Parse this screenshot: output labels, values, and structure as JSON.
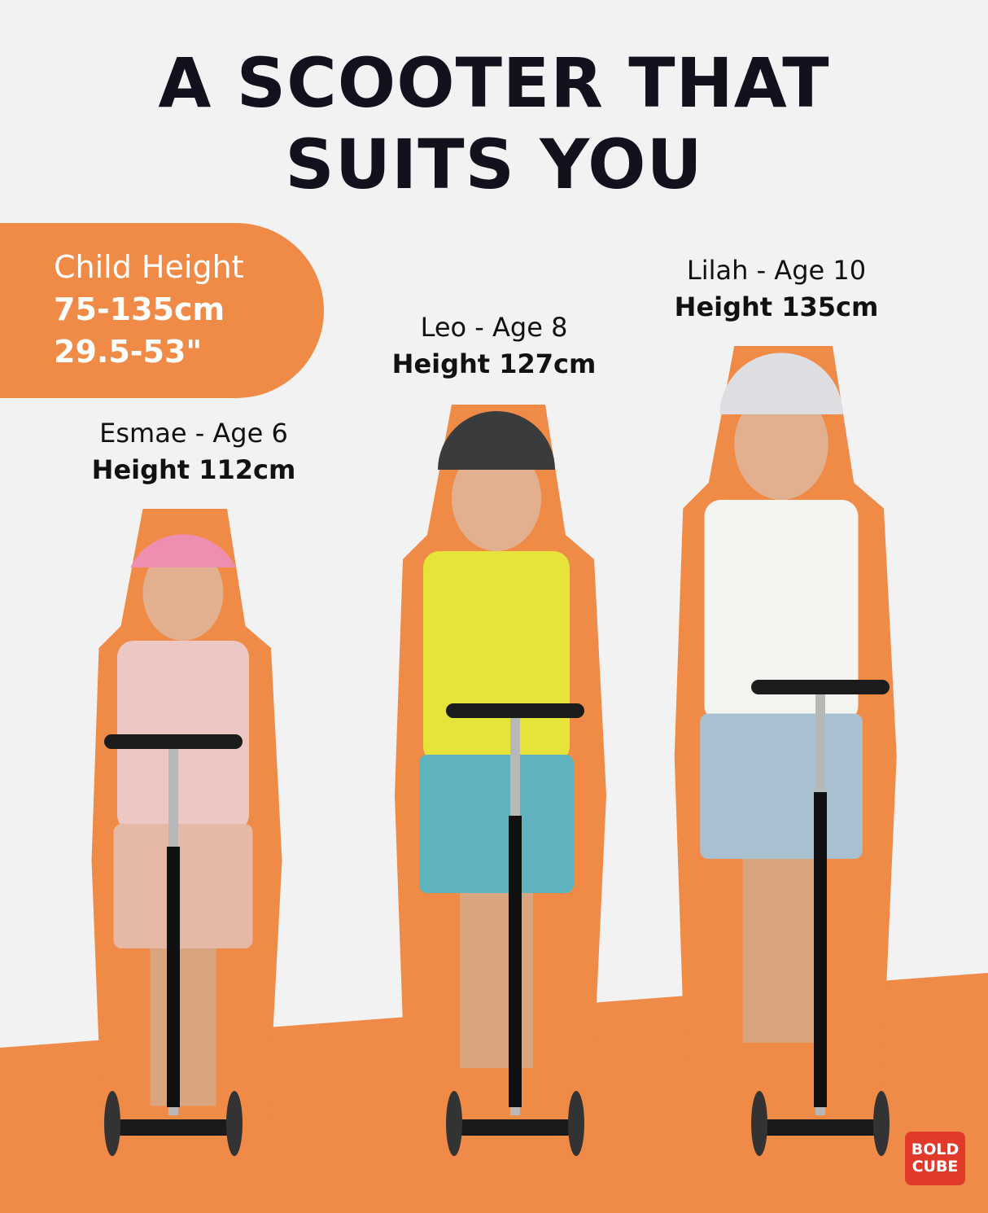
{
  "headline": {
    "line1": "A SCOOTER THAT",
    "line2": "SUITS YOU"
  },
  "height_range": {
    "label": "Child Height",
    "cm": "75-135cm",
    "inches": "29.5-53\""
  },
  "children": [
    {
      "name_age": "Esmae - Age 6",
      "height": "Height 112cm",
      "helmet": "#ee8fb1",
      "top": "#edc7c3",
      "bottom": "#e6b9a6"
    },
    {
      "name_age": "Leo - Age 8",
      "height": "Height 127cm",
      "helmet": "#3a3b3d",
      "top": "#e6e43a",
      "bottom": "#5fb3bf"
    },
    {
      "name_age": "Lilah - Age 10",
      "height": "Height 135cm",
      "helmet": "#dedde2",
      "top": "#f3f3f0",
      "bottom": "#a9c0d0"
    }
  ],
  "brand_logo": "BOLD CUBE",
  "colors": {
    "background": "#f2f2f2",
    "accent": "#ef8b47",
    "floor": "#f08a48",
    "title": "#12121e",
    "logo": "#e23a2a"
  }
}
